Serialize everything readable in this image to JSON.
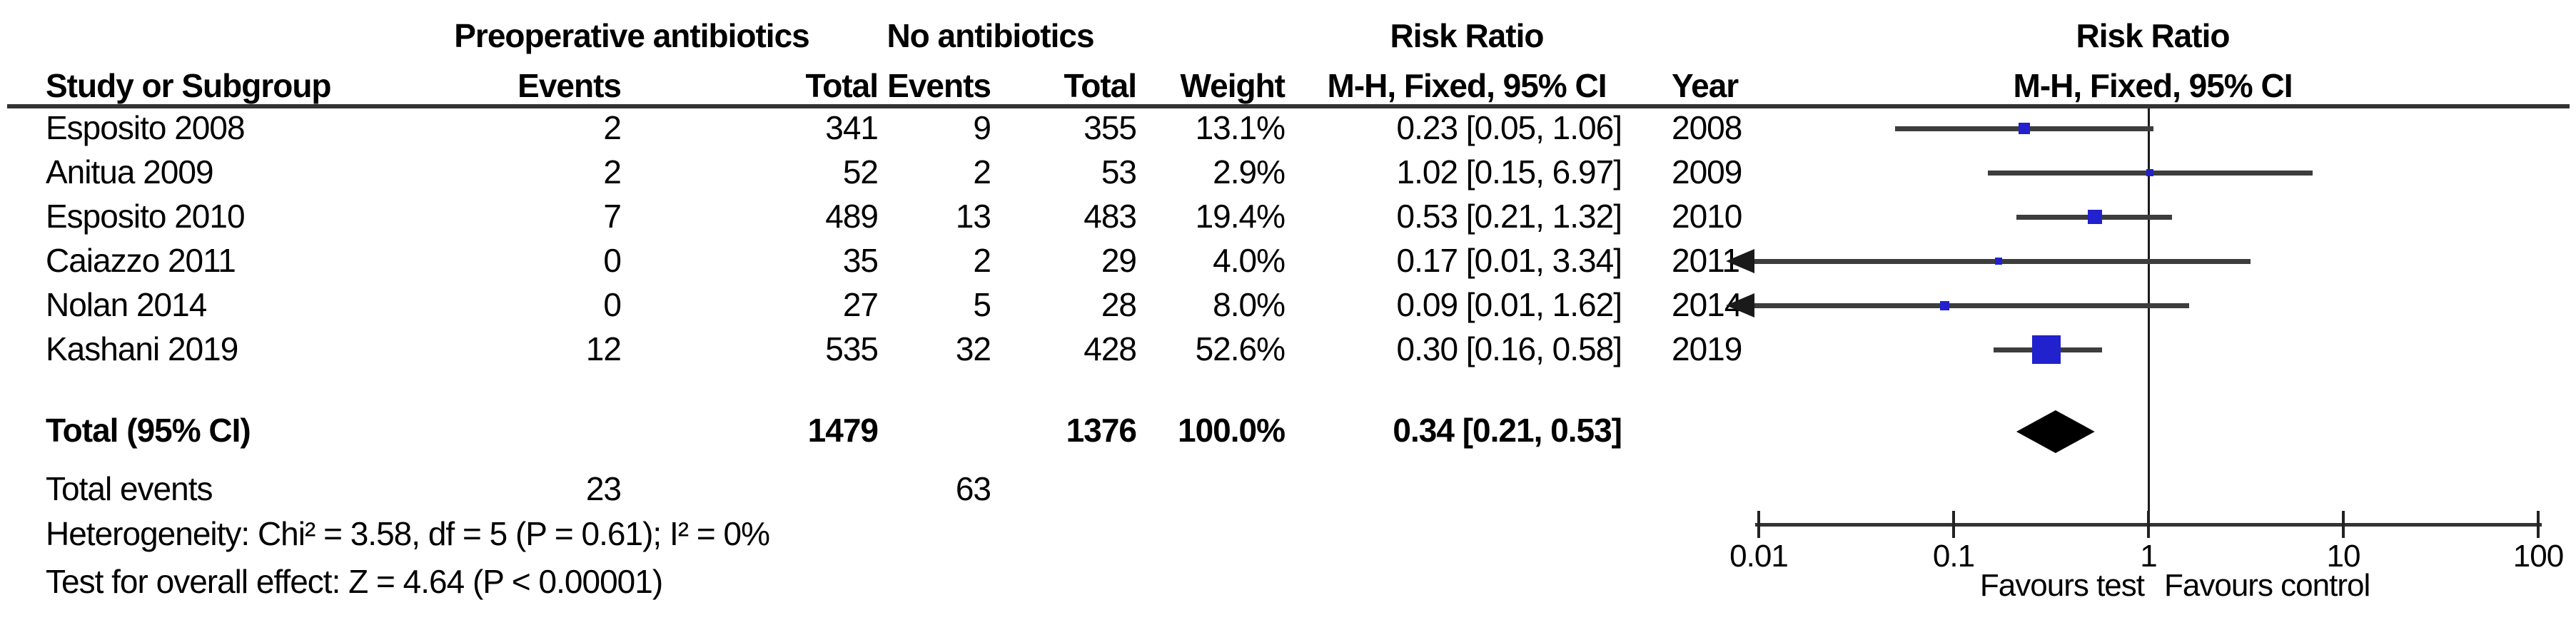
{
  "figure": {
    "group1_header": "Preoperative antibiotics",
    "group2_header": "No antibiotics",
    "rr_column_title": "Risk Ratio",
    "rr_column_subtitle": "M-H, Fixed, 95% CI",
    "plot_title": "Risk Ratio",
    "plot_subtitle": "M-H, Fixed, 95% CI",
    "col_study": "Study or Subgroup",
    "col_events": "Events",
    "col_total": "Total",
    "col_events2": "Events",
    "col_total2": "Total",
    "col_weight": "Weight",
    "col_year": "Year"
  },
  "table": {
    "total_row": {
      "label": "Total (95% CI)",
      "total_treat": "1479",
      "total_ctrl": "1376",
      "weight_text": "100.0%",
      "ci_text": "0.34 [0.21, 0.53]"
    },
    "total_events": {
      "label": "Total events",
      "events_treat": "23",
      "events_ctrl": "63"
    },
    "heterogeneity": "Heterogeneity: Chi² = 3.58, df = 5 (P = 0.61); I² = 0%",
    "overall_effect": "Test for overall effect: Z = 4.64 (P < 0.00001)"
  },
  "chart_data": {
    "type": "forest",
    "effect_measure": "Risk Ratio (M-H, Fixed, 95% CI)",
    "x_scale": "log10",
    "xlim": [
      0.01,
      100
    ],
    "ref_line": 1,
    "tick_labels": [
      "0.01",
      "0.1",
      "1",
      "10",
      "100"
    ],
    "favours_left": "Favours test",
    "favours_right": "Favours control",
    "studies": [
      {
        "study": "Esposito 2008",
        "events_treat": "2",
        "total_treat": "341",
        "events_ctrl": "9",
        "total_ctrl": "355",
        "weight_pct": 13.1,
        "weight_text": "13.1%",
        "rr": 0.23,
        "ci_low": 0.05,
        "ci_high": 1.06,
        "ci_text": "0.23 [0.05, 1.06]",
        "year": "2008"
      },
      {
        "study": "Anitua 2009",
        "events_treat": "2",
        "total_treat": "52",
        "events_ctrl": "2",
        "total_ctrl": "53",
        "weight_pct": 2.9,
        "weight_text": "2.9%",
        "rr": 1.02,
        "ci_low": 0.15,
        "ci_high": 6.97,
        "ci_text": "1.02 [0.15, 6.97]",
        "year": "2009"
      },
      {
        "study": "Esposito 2010",
        "events_treat": "7",
        "total_treat": "489",
        "events_ctrl": "13",
        "total_ctrl": "483",
        "weight_pct": 19.4,
        "weight_text": "19.4%",
        "rr": 0.53,
        "ci_low": 0.21,
        "ci_high": 1.32,
        "ci_text": "0.53 [0.21, 1.32]",
        "year": "2010"
      },
      {
        "study": "Caiazzo 2011",
        "events_treat": "0",
        "total_treat": "35",
        "events_ctrl": "2",
        "total_ctrl": "29",
        "weight_pct": 4.0,
        "weight_text": "4.0%",
        "rr": 0.17,
        "ci_low": 0.01,
        "ci_high": 3.34,
        "ci_text": "0.17 [0.01, 3.34]",
        "year": "2011"
      },
      {
        "study": "Nolan 2014",
        "events_treat": "0",
        "total_treat": "27",
        "events_ctrl": "5",
        "total_ctrl": "28",
        "weight_pct": 8.0,
        "weight_text": "8.0%",
        "rr": 0.09,
        "ci_low": 0.01,
        "ci_high": 1.62,
        "ci_text": "0.09 [0.01, 1.62]",
        "year": "2014"
      },
      {
        "study": "Kashani 2019",
        "events_treat": "12",
        "total_treat": "535",
        "events_ctrl": "32",
        "total_ctrl": "428",
        "weight_pct": 52.6,
        "weight_text": "52.6%",
        "rr": 0.3,
        "ci_low": 0.16,
        "ci_high": 0.58,
        "ci_text": "0.30 [0.16, 0.58]",
        "year": "2019"
      }
    ],
    "total": {
      "rr": 0.34,
      "ci_low": 0.21,
      "ci_high": 0.53
    }
  },
  "colors": {
    "square": "#2121cd",
    "diamond": "#000000",
    "ci_line": "#3d3d3d",
    "axis": "#222222",
    "text": "#000000"
  }
}
